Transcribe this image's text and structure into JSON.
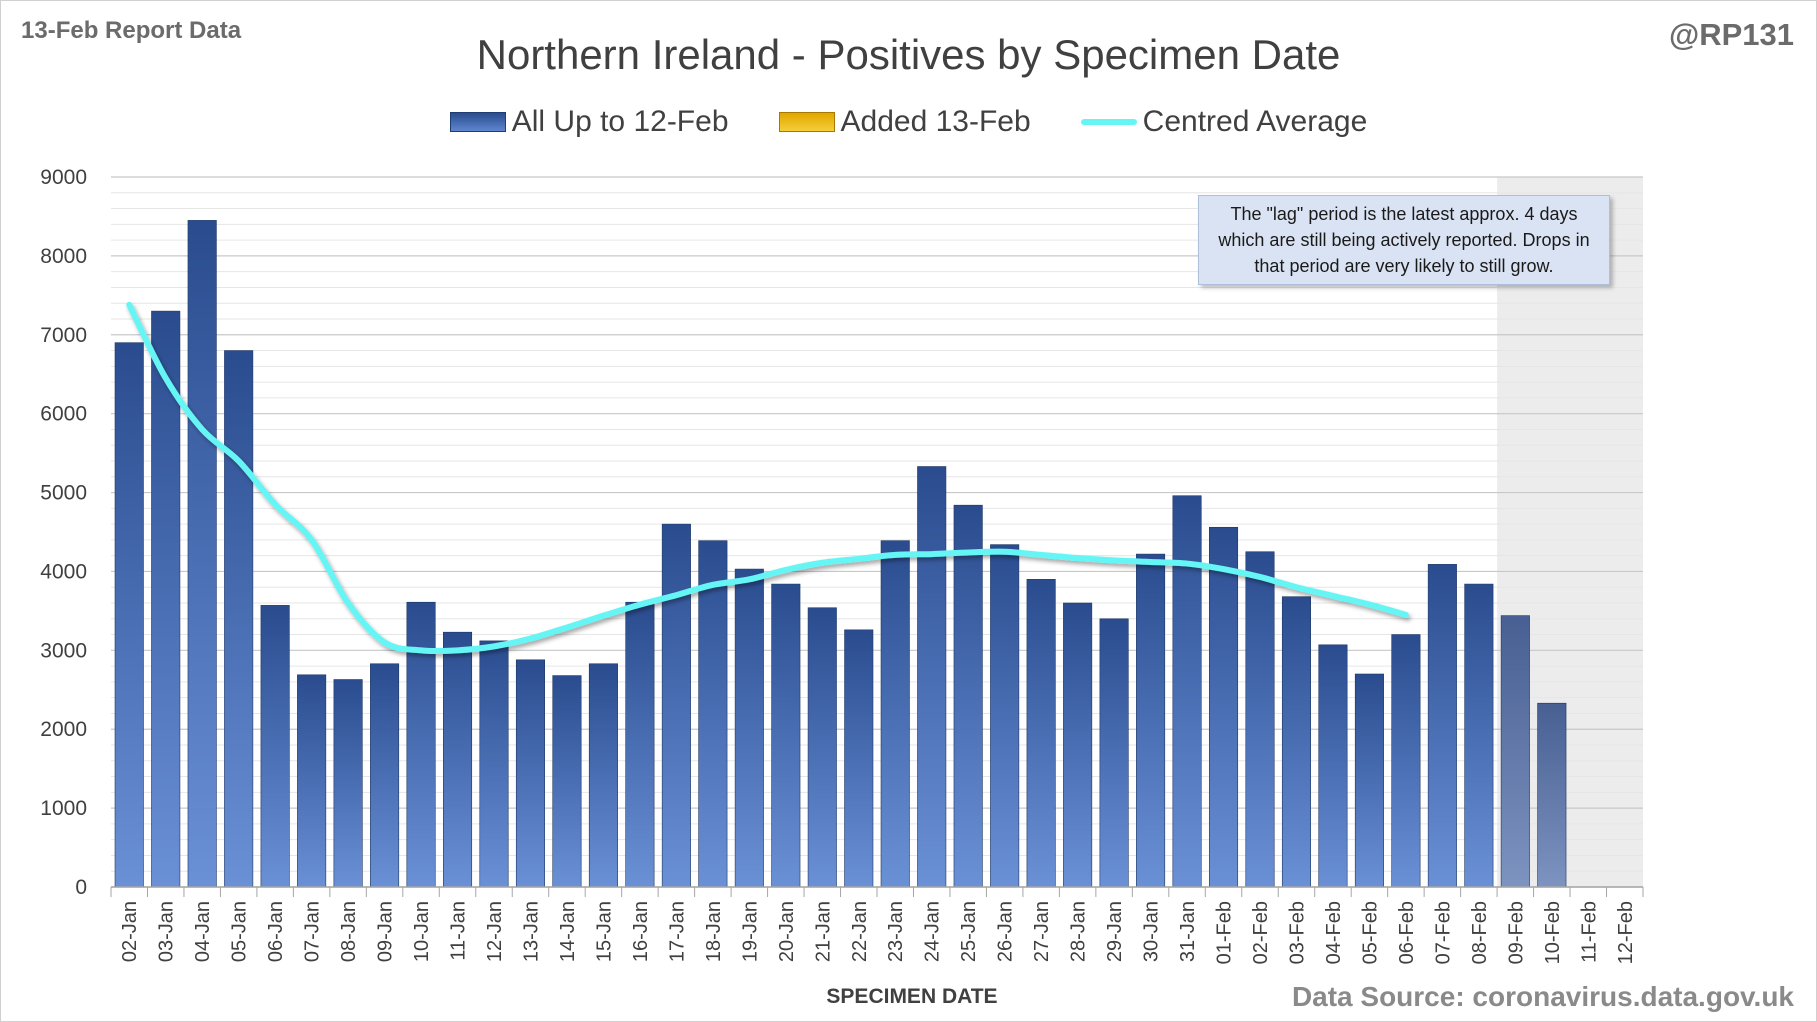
{
  "header": {
    "report_label": "13-Feb Report Data",
    "author": "@RP131",
    "title": "Northern Ireland - Positives by Specimen Date"
  },
  "legend": {
    "bars_label": "All Up to 12-Feb",
    "added_label": "Added 13-Feb",
    "average_label": "Centred Average"
  },
  "annotation": {
    "lag_text": "The \"lag\" period is the latest approx. 4 days which are still being actively reported. Drops in that period are very likely to still grow.",
    "lag_label": "LAG"
  },
  "footer": {
    "x_axis_title": "SPECIMEN DATE",
    "source": "Data Source: coronavirus.data.gov.uk"
  },
  "colors": {
    "bar_top": "#2a4c8f",
    "bar_bottom": "#6a90d6",
    "added": "#e0a600",
    "average": "#66f5f5",
    "lag_band": "#ececec"
  },
  "chart_data": {
    "type": "bar",
    "title": "Northern Ireland - Positives by Specimen Date",
    "xlabel": "SPECIMEN DATE",
    "ylabel": "",
    "ylim": [
      0,
      9000
    ],
    "y_ticks": [
      0,
      1000,
      2000,
      3000,
      4000,
      5000,
      6000,
      7000,
      8000,
      9000
    ],
    "grid": true,
    "legend_position": "top-center",
    "categories": [
      "02-Jan",
      "03-Jan",
      "04-Jan",
      "05-Jan",
      "06-Jan",
      "07-Jan",
      "08-Jan",
      "09-Jan",
      "10-Jan",
      "11-Jan",
      "12-Jan",
      "13-Jan",
      "14-Jan",
      "15-Jan",
      "16-Jan",
      "17-Jan",
      "18-Jan",
      "19-Jan",
      "20-Jan",
      "21-Jan",
      "22-Jan",
      "23-Jan",
      "24-Jan",
      "25-Jan",
      "26-Jan",
      "27-Jan",
      "28-Jan",
      "29-Jan",
      "30-Jan",
      "31-Jan",
      "01-Feb",
      "02-Feb",
      "03-Feb",
      "04-Feb",
      "05-Feb",
      "06-Feb",
      "07-Feb",
      "08-Feb",
      "09-Feb",
      "10-Feb",
      "11-Feb",
      "12-Feb"
    ],
    "series": [
      {
        "name": "All Up to 12-Feb",
        "type": "bar",
        "values": [
          6900,
          7300,
          8450,
          6800,
          3570,
          2690,
          2630,
          2830,
          3610,
          3230,
          3120,
          2880,
          2680,
          2830,
          3610,
          4600,
          4390,
          4030,
          3840,
          3540,
          3260,
          4390,
          5330,
          4840,
          4340,
          3900,
          3600,
          3400,
          4220,
          4960,
          4560,
          4250,
          3680,
          3070,
          2700,
          3200,
          4090,
          3840,
          3440,
          2330,
          null,
          null
        ]
      },
      {
        "name": "Added 13-Feb",
        "type": "bar",
        "values": [
          0,
          0,
          0,
          0,
          0,
          0,
          0,
          0,
          0,
          0,
          0,
          0,
          0,
          0,
          0,
          0,
          0,
          0,
          0,
          0,
          0,
          0,
          0,
          0,
          0,
          0,
          0,
          0,
          0,
          0,
          0,
          0,
          0,
          0,
          0,
          0,
          0,
          0,
          0,
          0,
          0,
          0
        ]
      },
      {
        "name": "Centred Average",
        "type": "line",
        "values": [
          7380,
          6450,
          5800,
          5400,
          4850,
          4400,
          3600,
          3100,
          3000,
          3000,
          3050,
          3150,
          3290,
          3440,
          3580,
          3700,
          3830,
          3900,
          4020,
          4110,
          4160,
          4210,
          4220,
          4240,
          4250,
          4210,
          4170,
          4140,
          4120,
          4100,
          4030,
          3930,
          3800,
          3690,
          3580,
          3450,
          null,
          null,
          null,
          null,
          null,
          null
        ]
      }
    ],
    "lag_period": [
      "09-Feb",
      "12-Feb"
    ]
  }
}
